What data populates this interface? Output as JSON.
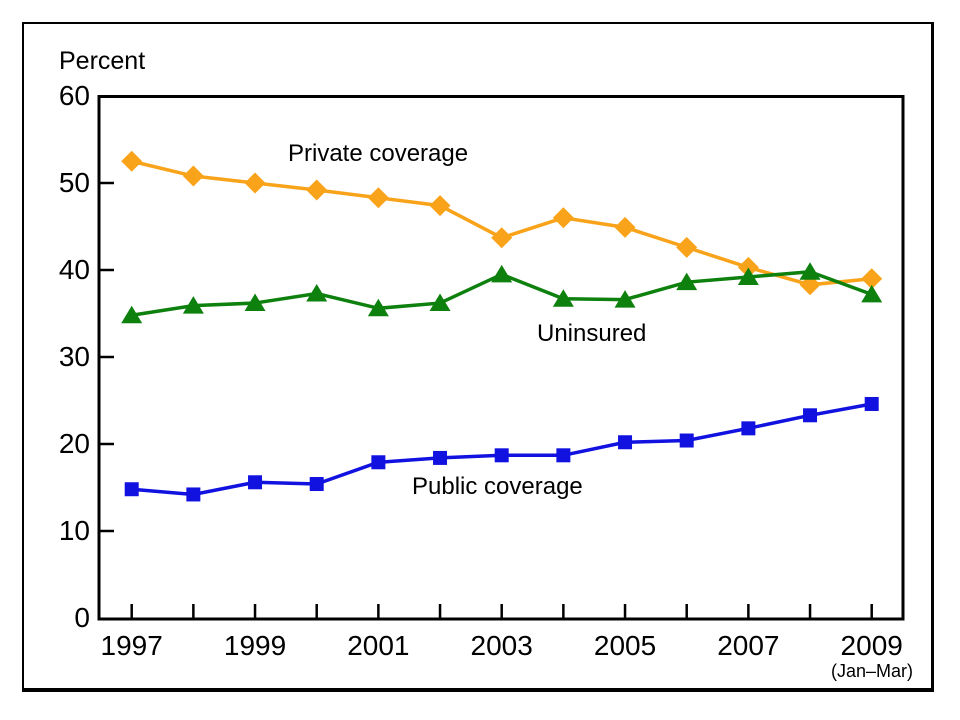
{
  "chart_data": {
    "type": "line",
    "ylabel": "Percent",
    "x_note": "(Jan–Mar)",
    "x_years": [
      1997,
      1998,
      1999,
      2000,
      2001,
      2002,
      2003,
      2004,
      2005,
      2006,
      2007,
      2008,
      2009
    ],
    "xtick_labels": [
      "1997",
      "1999",
      "2001",
      "2003",
      "2005",
      "2007",
      "2009"
    ],
    "yticks": [
      0,
      10,
      20,
      30,
      40,
      50,
      60
    ],
    "ylim": [
      0,
      60
    ],
    "grid": false,
    "legend_position": "inline labels next to lines",
    "axis_color": "#000000",
    "series": [
      {
        "name": "Private coverage",
        "marker": "diamond",
        "color": "#F9A31B",
        "values": [
          52.5,
          50.8,
          50.0,
          49.2,
          48.3,
          47.4,
          43.7,
          46.0,
          44.9,
          42.6,
          40.3,
          38.3,
          39.0
        ]
      },
      {
        "name": "Uninsured",
        "marker": "triangle",
        "color": "#0D800D",
        "values": [
          34.8,
          35.9,
          36.2,
          37.3,
          35.6,
          36.2,
          39.5,
          36.7,
          36.6,
          38.6,
          39.2,
          39.8,
          37.2
        ]
      },
      {
        "name": "Public coverage",
        "marker": "square",
        "color": "#1111E0",
        "values": [
          14.8,
          14.2,
          15.6,
          15.4,
          17.9,
          18.4,
          18.7,
          18.7,
          20.2,
          20.4,
          21.8,
          23.3,
          24.6
        ]
      }
    ]
  }
}
